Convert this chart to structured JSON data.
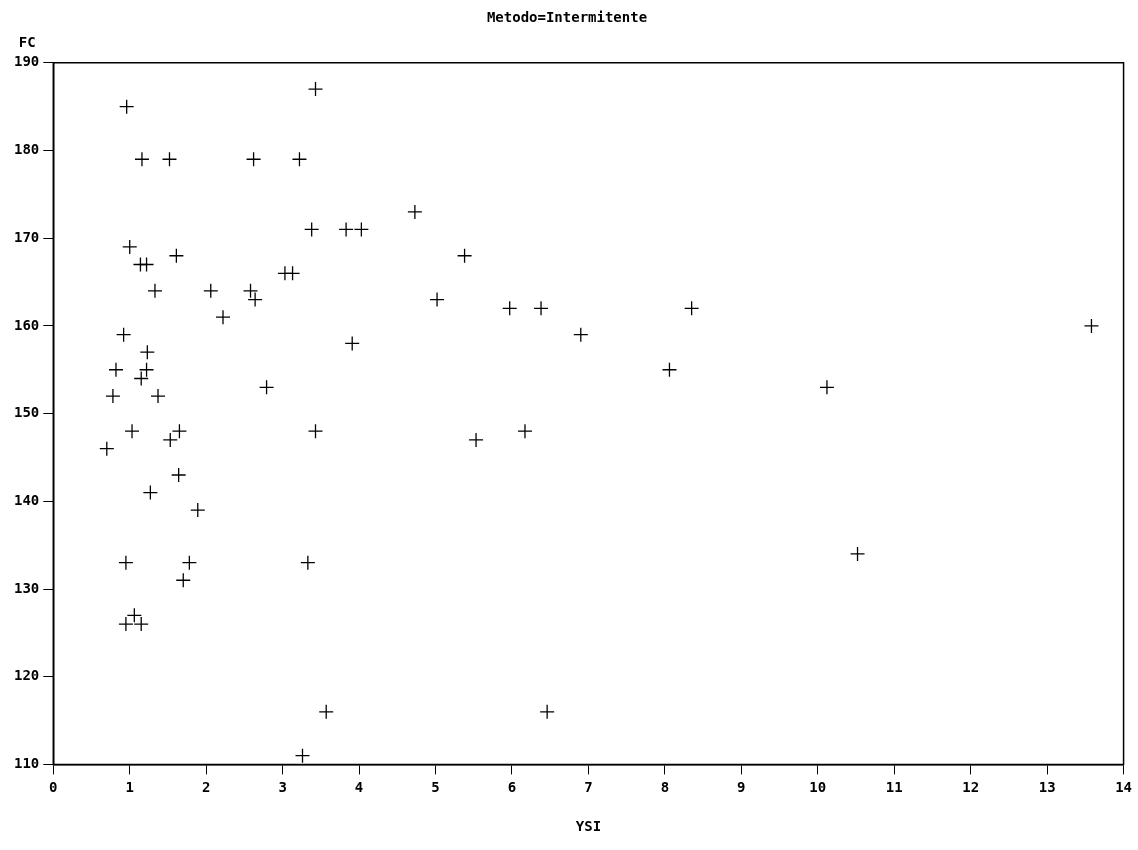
{
  "chart_data": {
    "type": "scatter",
    "title": "Metodo=Intermitente",
    "xlabel": "YSI",
    "ylabel": "FC",
    "marker": "cross",
    "grid": false,
    "legend": false,
    "xlim": [
      0,
      14
    ],
    "xticks": [
      0,
      1,
      2,
      3,
      4,
      5,
      6,
      7,
      8,
      9,
      10,
      11,
      12,
      13,
      14
    ],
    "ylim": [
      110,
      190
    ],
    "yticks": [
      110,
      120,
      130,
      140,
      150,
      160,
      170,
      180,
      190
    ],
    "series": [
      {
        "color": "#000000",
        "x": [
          0.96,
          1.16,
          1.52,
          2.62,
          3.22,
          3.43,
          1.0,
          1.14,
          1.22,
          1.61,
          1.33,
          2.06,
          2.58,
          2.64,
          2.22,
          3.03,
          3.13,
          3.38,
          3.83,
          4.03,
          4.73,
          5.02,
          5.38,
          3.91,
          5.97,
          6.38,
          6.9,
          8.35,
          8.06,
          10.12,
          10.52,
          13.58,
          5.53,
          6.17,
          2.79,
          3.43,
          0.92,
          1.23,
          0.82,
          1.22,
          1.15,
          0.78,
          1.37,
          0.7,
          1.03,
          1.65,
          1.53,
          1.64,
          1.27,
          1.89,
          0.95,
          1.78,
          1.7,
          3.33,
          1.06,
          0.95,
          1.15,
          3.57,
          6.46,
          3.26
        ],
        "values": [
          185,
          179,
          179,
          179,
          179,
          187,
          169,
          167,
          167,
          168,
          164,
          164,
          164,
          163,
          161,
          166,
          166,
          171,
          171,
          171,
          173,
          163,
          168,
          158,
          162,
          162,
          159,
          162,
          155,
          153,
          134,
          160,
          147,
          148,
          153,
          148,
          159,
          157,
          155,
          155,
          154,
          152,
          152,
          146,
          148,
          148,
          147,
          143,
          141,
          139,
          133,
          133,
          131,
          133,
          127,
          126,
          126,
          116,
          116,
          111
        ]
      }
    ]
  }
}
